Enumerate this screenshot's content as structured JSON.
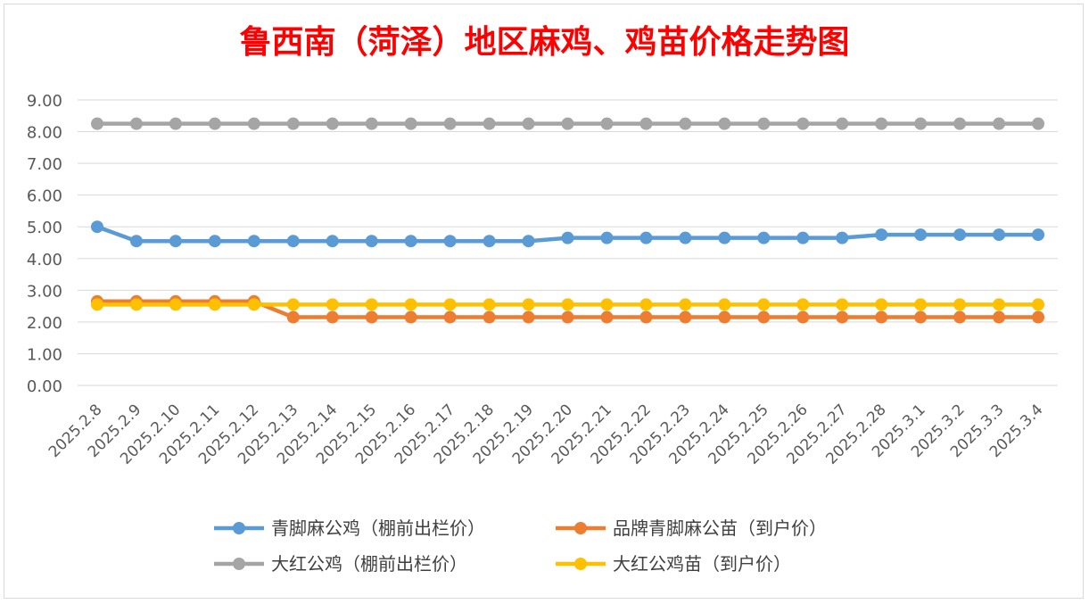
{
  "chart_data": {
    "type": "line",
    "title": "鲁西南（菏泽）地区麻鸡、鸡苗价格走势图",
    "xlabel": "",
    "ylabel": "",
    "ylim": [
      0,
      9
    ],
    "ytick_labels": [
      "0.00",
      "1.00",
      "2.00",
      "3.00",
      "4.00",
      "5.00",
      "6.00",
      "7.00",
      "8.00",
      "9.00"
    ],
    "grid": true,
    "legend_position": "bottom",
    "categories": [
      "2025.2.8",
      "2025.2.9",
      "2025.2.10",
      "2025.2.11",
      "2025.2.12",
      "2025.2.13",
      "2025.2.14",
      "2025.2.15",
      "2025.2.16",
      "2025.2.17",
      "2025.2.18",
      "2025.2.19",
      "2025.2.20",
      "2025.2.21",
      "2025.2.22",
      "2025.2.23",
      "2025.2.24",
      "2025.2.25",
      "2025.2.26",
      "2025.2.27",
      "2025.2.28",
      "2025.3.1",
      "2025.3.2",
      "2025.3.3",
      "2025.3.4"
    ],
    "series": [
      {
        "name": "青脚麻公鸡（棚前出栏价）",
        "color": "#5b9bd5",
        "values": [
          5.0,
          4.55,
          4.55,
          4.55,
          4.55,
          4.55,
          4.55,
          4.55,
          4.55,
          4.55,
          4.55,
          4.55,
          4.65,
          4.65,
          4.65,
          4.65,
          4.65,
          4.65,
          4.65,
          4.65,
          4.75,
          4.75,
          4.75,
          4.75,
          4.75
        ]
      },
      {
        "name": "品牌青脚麻公苗（到户价）",
        "color": "#ed7d31",
        "values": [
          2.65,
          2.65,
          2.65,
          2.65,
          2.65,
          2.15,
          2.15,
          2.15,
          2.15,
          2.15,
          2.15,
          2.15,
          2.15,
          2.15,
          2.15,
          2.15,
          2.15,
          2.15,
          2.15,
          2.15,
          2.15,
          2.15,
          2.15,
          2.15,
          2.15
        ]
      },
      {
        "name": "大红公鸡（棚前出栏价）",
        "color": "#a5a5a5",
        "values": [
          8.25,
          8.25,
          8.25,
          8.25,
          8.25,
          8.25,
          8.25,
          8.25,
          8.25,
          8.25,
          8.25,
          8.25,
          8.25,
          8.25,
          8.25,
          8.25,
          8.25,
          8.25,
          8.25,
          8.25,
          8.25,
          8.25,
          8.25,
          8.25,
          8.25
        ]
      },
      {
        "name": "大红公鸡苗（到户价）",
        "color": "#ffc000",
        "values": [
          2.55,
          2.55,
          2.55,
          2.55,
          2.55,
          2.55,
          2.55,
          2.55,
          2.55,
          2.55,
          2.55,
          2.55,
          2.55,
          2.55,
          2.55,
          2.55,
          2.55,
          2.55,
          2.55,
          2.55,
          2.55,
          2.55,
          2.55,
          2.55,
          2.55
        ]
      }
    ]
  }
}
